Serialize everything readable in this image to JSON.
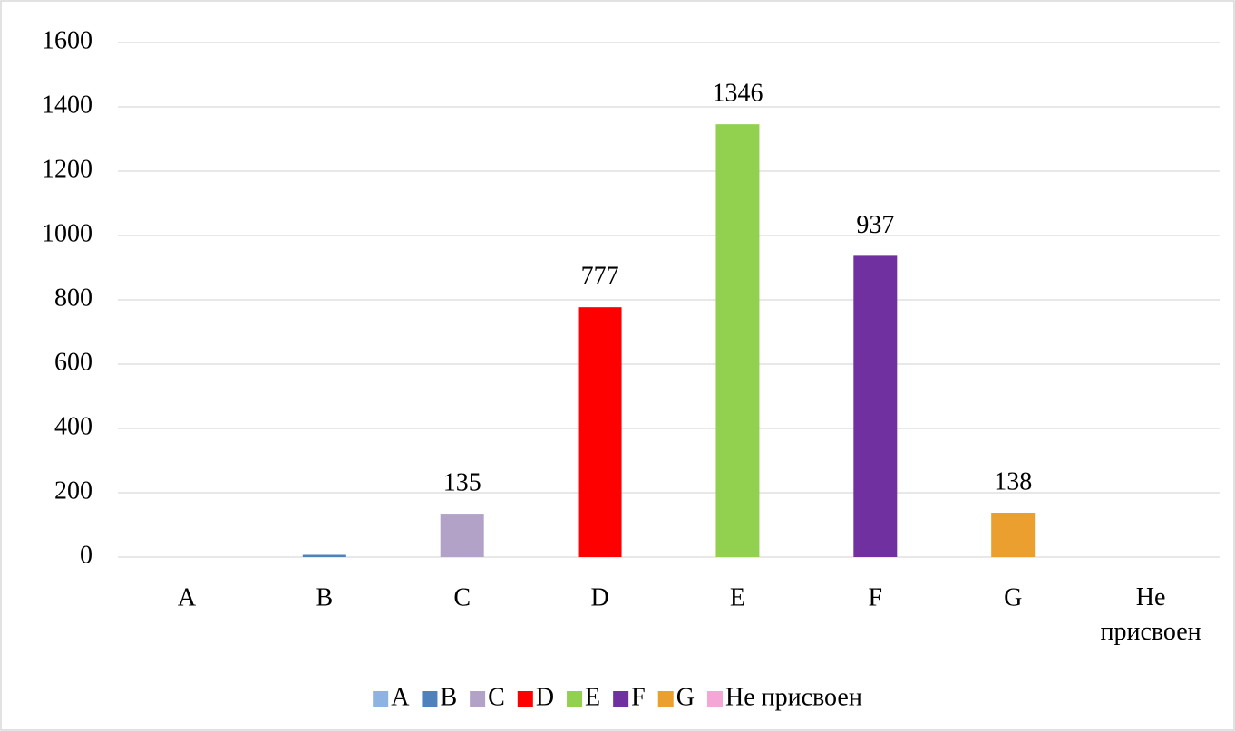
{
  "chart_data": {
    "type": "bar",
    "categories": [
      "A",
      "B",
      "C",
      "D",
      "E",
      "F",
      "G",
      "Не присвоен"
    ],
    "values": [
      0,
      7,
      135,
      777,
      1346,
      937,
      138,
      0
    ],
    "value_labels": [
      null,
      null,
      "135",
      "777",
      "1346",
      "937",
      "138",
      null
    ],
    "colors": [
      "#8db3e2",
      "#4f81bd",
      "#b3a2c7",
      "#ff0000",
      "#92d050",
      "#7030a0",
      "#eb9f2e",
      "#f4a6d7"
    ],
    "ylim": [
      0,
      1600
    ],
    "yticks": [
      0,
      200,
      400,
      600,
      800,
      1000,
      1200,
      1400,
      1600
    ],
    "grid": true,
    "legend": "bottom"
  }
}
